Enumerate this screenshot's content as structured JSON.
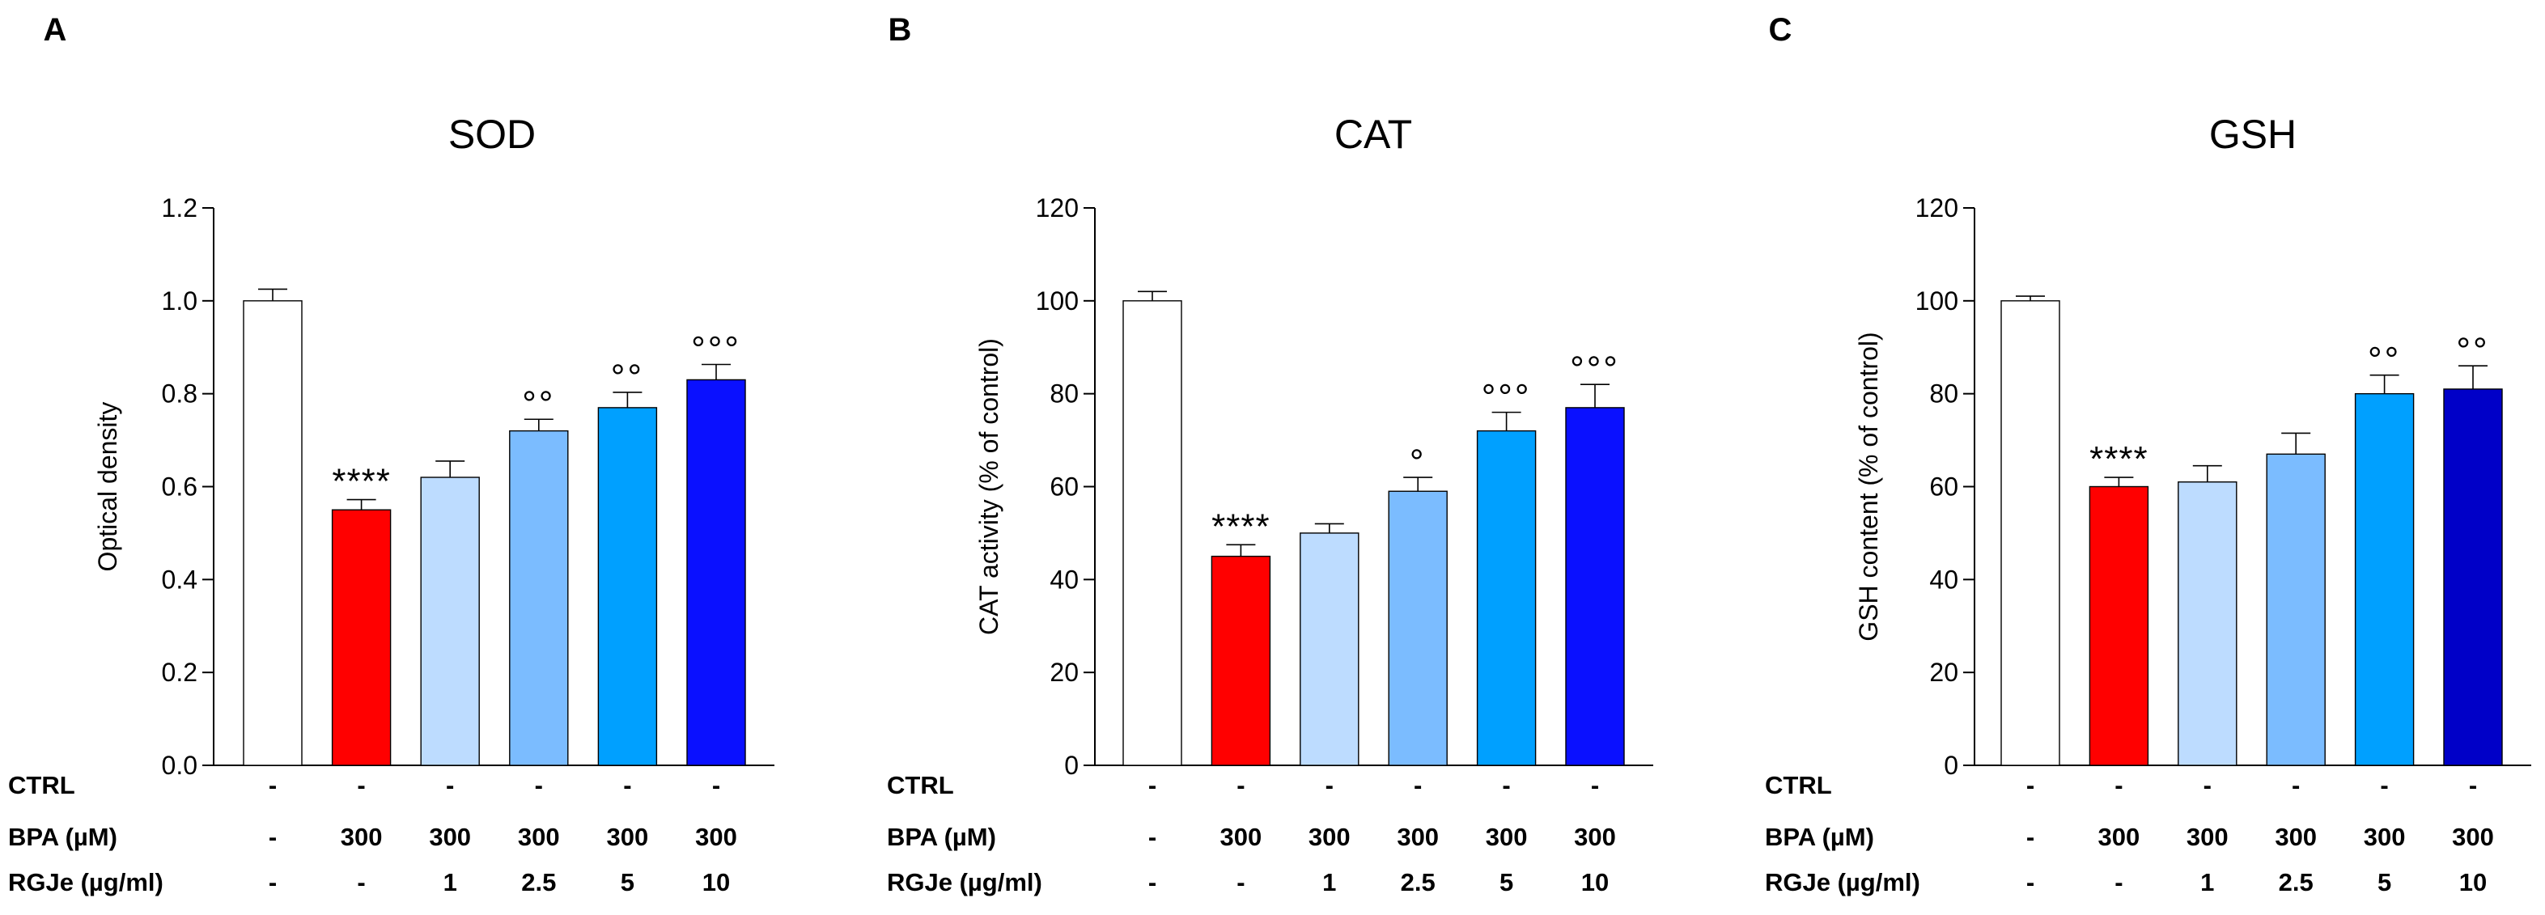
{
  "chart_data": [
    {
      "type": "bar",
      "panel": "A",
      "title": "SOD",
      "ylabel": "Optical density",
      "xlabel": "",
      "ylim": [
        0,
        1.2
      ],
      "yticks": [
        "0.0",
        "0.2",
        "0.4",
        "0.6",
        "0.8",
        "1.0",
        "1.2"
      ],
      "ytick_values": [
        0,
        0.2,
        0.4,
        0.6,
        0.8,
        1.0,
        1.2
      ],
      "values": [
        1.0,
        0.55,
        0.62,
        0.72,
        0.77,
        0.83
      ],
      "errors": [
        0.025,
        0.022,
        0.035,
        0.025,
        0.033,
        0.033
      ],
      "colors": [
        "#ffffff",
        "#ff0000",
        "#bddcff",
        "#7bbcff",
        "#00a0ff",
        "#0a10ff"
      ],
      "annotations": [
        "",
        "****",
        "",
        "°°",
        "°°",
        "°°°"
      ],
      "table_rows": [
        {
          "label": "CTRL",
          "cells": [
            "-",
            "-",
            "-",
            "-",
            "-",
            "-"
          ]
        },
        {
          "label": "BPA (µM)",
          "cells": [
            "-",
            "300",
            "300",
            "300",
            "300",
            "300"
          ]
        },
        {
          "label": "RGJe (µg/ml)",
          "cells": [
            "-",
            "-",
            "1",
            "2.5",
            "5",
            "10"
          ]
        }
      ],
      "grid": false,
      "legend": "none"
    },
    {
      "type": "bar",
      "panel": "B",
      "title": "CAT",
      "ylabel": "CAT activity (% of control)",
      "xlabel": "",
      "ylim": [
        0,
        120
      ],
      "yticks": [
        "0",
        "20",
        "40",
        "60",
        "80",
        "100",
        "120"
      ],
      "ytick_values": [
        0,
        20,
        40,
        60,
        80,
        100,
        120
      ],
      "values": [
        100,
        45,
        50,
        59,
        72,
        77
      ],
      "errors": [
        2,
        2.5,
        2,
        3,
        4,
        5
      ],
      "colors": [
        "#ffffff",
        "#ff0000",
        "#bddcff",
        "#7bbcff",
        "#00a0ff",
        "#0a10ff"
      ],
      "annotations": [
        "",
        "****",
        "",
        "°",
        "°°°",
        "°°°"
      ],
      "table_rows": [
        {
          "label": "CTRL",
          "cells": [
            "-",
            "-",
            "-",
            "-",
            "-",
            "-"
          ]
        },
        {
          "label": "BPA (µM)",
          "cells": [
            "-",
            "300",
            "300",
            "300",
            "300",
            "300"
          ]
        },
        {
          "label": "RGJe (µg/ml)",
          "cells": [
            "-",
            "-",
            "1",
            "2.5",
            "5",
            "10"
          ]
        }
      ],
      "grid": false,
      "legend": "none"
    },
    {
      "type": "bar",
      "panel": "C",
      "title": "GSH",
      "ylabel": "GSH content (% of control)",
      "xlabel": "",
      "ylim": [
        0,
        120
      ],
      "yticks": [
        "0",
        "20",
        "40",
        "60",
        "80",
        "100",
        "120"
      ],
      "ytick_values": [
        0,
        20,
        40,
        60,
        80,
        100,
        120
      ],
      "values": [
        100,
        60,
        61,
        67,
        80,
        81
      ],
      "errors": [
        1,
        2,
        3.5,
        4.5,
        4,
        5
      ],
      "colors": [
        "#ffffff",
        "#ff0000",
        "#bddcff",
        "#7bbcff",
        "#00a0ff",
        "#0000c8"
      ],
      "annotations": [
        "",
        "****",
        "",
        "",
        "°°",
        "°°"
      ],
      "table_rows": [
        {
          "label": "CTRL",
          "cells": [
            "-",
            "-",
            "-",
            "-",
            "-",
            "-"
          ]
        },
        {
          "label": "BPA (µM)",
          "cells": [
            "-",
            "300",
            "300",
            "300",
            "300",
            "300"
          ]
        },
        {
          "label": "RGJe (µg/ml)",
          "cells": [
            "-",
            "-",
            "1",
            "2.5",
            "5",
            "10"
          ]
        }
      ],
      "grid": false,
      "legend": "none"
    }
  ]
}
